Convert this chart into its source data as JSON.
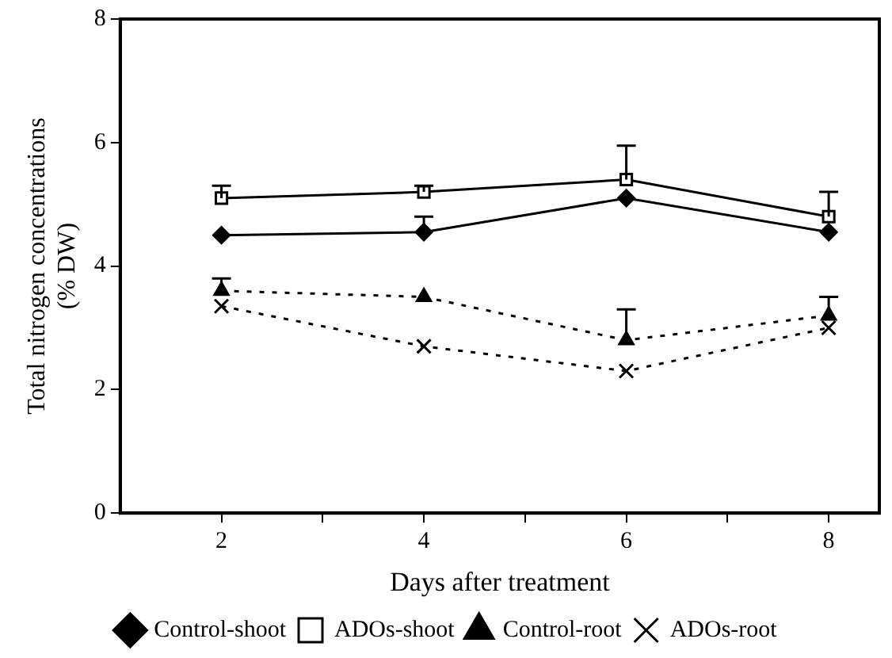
{
  "chart_data": {
    "type": "line",
    "xlabel": "Days after treatment",
    "ylabel": "Total nitrogen concentrations\n(% DW)",
    "x": [
      2,
      4,
      6,
      8
    ],
    "xlim": [
      1,
      8.5
    ],
    "xticks": [
      2,
      {
        "value": 3,
        "label": null
      },
      4,
      {
        "value": 5,
        "label": null
      },
      6,
      {
        "value": 7,
        "label": null
      },
      8
    ],
    "ylim": [
      0,
      8
    ],
    "yticks": [
      0,
      2,
      4,
      6,
      8
    ],
    "grid": false,
    "legend": "bottom",
    "series": [
      {
        "name": "Control-shoot",
        "color": "#000000",
        "marker": "diamond",
        "line_style": "solid",
        "values": [
          4.5,
          4.55,
          5.1,
          4.55
        ],
        "errors": [
          null,
          [
            4.55,
            4.8
          ],
          null,
          null
        ]
      },
      {
        "name": "ADOs-shoot",
        "color": "#000000",
        "marker": "square",
        "line_style": "solid",
        "values": [
          5.1,
          5.2,
          5.4,
          4.8
        ],
        "errors": [
          [
            5.1,
            5.3
          ],
          [
            5.2,
            5.3
          ],
          [
            5.4,
            5.95
          ],
          [
            4.8,
            5.2
          ]
        ]
      },
      {
        "name": "Control-root",
        "color": "#000000",
        "marker": "triangle",
        "line_style": "dashed",
        "values": [
          3.6,
          3.5,
          2.8,
          3.2
        ],
        "errors": [
          [
            3.6,
            3.8
          ],
          null,
          [
            2.8,
            3.3
          ],
          [
            3.2,
            3.5
          ]
        ]
      },
      {
        "name": "ADOs-root",
        "color": "#000000",
        "marker": "cross",
        "line_style": "dashed",
        "values": [
          3.35,
          2.7,
          2.3,
          3.0
        ]
      }
    ]
  }
}
